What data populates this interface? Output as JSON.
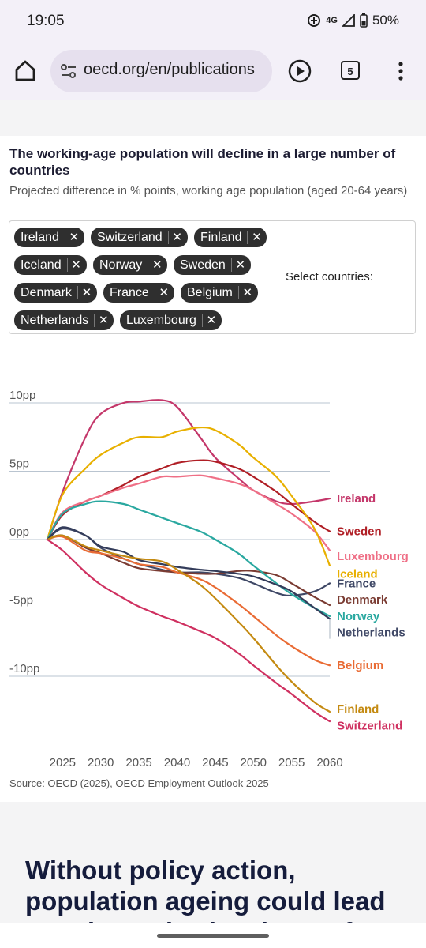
{
  "status": {
    "time": "19:05",
    "network": "4G",
    "battery": "50%"
  },
  "browser": {
    "url": "oecd.org/en/publications",
    "tab_count": "5"
  },
  "chart_data": {
    "type": "line",
    "title": "The working-age population will decline in a large number of countries",
    "subtitle": "Projected difference in % points, working age population (aged 20-64 years)",
    "x": [
      2023,
      2025,
      2028,
      2030,
      2033,
      2035,
      2038,
      2040,
      2043,
      2045,
      2048,
      2050,
      2053,
      2055,
      2058,
      2060
    ],
    "xticks": [
      "2025",
      "2030",
      "2035",
      "2040",
      "2045",
      "2050",
      "2055",
      "2060"
    ],
    "yticks": [
      {
        "value": 10,
        "label": "10pp"
      },
      {
        "value": 5,
        "label": "5pp"
      },
      {
        "value": 0,
        "label": "0pp"
      },
      {
        "value": -5,
        "label": "-5pp"
      },
      {
        "value": -10,
        "label": "-10pp"
      }
    ],
    "ylim": [
      -12,
      11
    ],
    "grid": true,
    "series": [
      {
        "name": "Ireland",
        "color": "#c4376a",
        "values": [
          0,
          3.5,
          7.5,
          9.2,
          10,
          10.1,
          10.2,
          9.7,
          7.5,
          6,
          4.5,
          3.6,
          2.8,
          2.6,
          2.8,
          3.0
        ]
      },
      {
        "name": "Sweden",
        "color": "#b01e25",
        "values": [
          0,
          1.8,
          2.8,
          3.2,
          4.0,
          4.6,
          5.2,
          5.6,
          5.8,
          5.7,
          5.2,
          4.6,
          3.5,
          2.6,
          1.3,
          0.6
        ]
      },
      {
        "name": "Luxembourg",
        "color": "#ef6f86",
        "values": [
          0,
          2.0,
          2.8,
          3.2,
          3.8,
          4.1,
          4.6,
          4.6,
          4.7,
          4.5,
          4.1,
          3.6,
          2.6,
          1.9,
          0.6,
          -0.8
        ]
      },
      {
        "name": "Iceland",
        "color": "#e8b000",
        "values": [
          0,
          3.3,
          5.2,
          6.2,
          7.1,
          7.5,
          7.5,
          7.9,
          8.2,
          8.0,
          7.0,
          6.0,
          4.6,
          3.2,
          0.8,
          -1.9
        ]
      },
      {
        "name": "France",
        "color": "#3f4866",
        "values": [
          0,
          0.8,
          0.3,
          -0.6,
          -1.4,
          -1.8,
          -2.2,
          -2.4,
          -2.4,
          -2.5,
          -2.8,
          -3.2,
          -3.9,
          -4.1,
          -3.8,
          -3.2
        ]
      },
      {
        "name": "Denmark",
        "color": "#7a3b32",
        "values": [
          0,
          0.3,
          -0.6,
          -1.0,
          -1.7,
          -2.1,
          -2.3,
          -2.4,
          -2.5,
          -2.5,
          -2.3,
          -2.3,
          -2.6,
          -3.2,
          -4.2,
          -4.8
        ]
      },
      {
        "name": "Norway",
        "color": "#2aa8a0",
        "values": [
          0,
          1.9,
          2.6,
          2.8,
          2.6,
          2.2,
          1.6,
          1.2,
          0.6,
          0.0,
          -1.0,
          -1.9,
          -3.2,
          -4.0,
          -5.0,
          -5.6
        ]
      },
      {
        "name": "Netherlands",
        "color": "#333c5a",
        "values": [
          0,
          0.9,
          0.3,
          -0.5,
          -0.9,
          -1.5,
          -1.8,
          -2.0,
          -2.2,
          -2.3,
          -2.5,
          -2.7,
          -3.3,
          -3.8,
          -5.0,
          -5.8
        ]
      },
      {
        "name": "Belgium",
        "color": "#e96b34",
        "values": [
          0,
          0.2,
          -0.8,
          -1.0,
          -1.4,
          -1.8,
          -2.0,
          -2.4,
          -2.9,
          -3.5,
          -4.7,
          -5.6,
          -7.0,
          -7.8,
          -8.8,
          -9.2
        ]
      },
      {
        "name": "Finland",
        "color": "#c48a11",
        "values": [
          0,
          0.3,
          -0.5,
          -0.8,
          -1.2,
          -1.4,
          -1.6,
          -2.2,
          -3.3,
          -4.3,
          -6.0,
          -7.2,
          -9.2,
          -10.4,
          -11.9,
          -12.6
        ]
      },
      {
        "name": "Switzerland",
        "color": "#cf3060",
        "values": [
          0,
          -0.8,
          -2.4,
          -3.3,
          -4.3,
          -4.9,
          -5.6,
          -6.0,
          -6.7,
          -7.2,
          -8.3,
          -9.2,
          -10.5,
          -11.3,
          -12.6,
          -13.3
        ]
      }
    ],
    "end_labels": [
      {
        "name": "Ireland",
        "label_y": 3.0,
        "color": "#c4376a"
      },
      {
        "name": "Sweden",
        "label_y": 0.6,
        "color": "#b01e25"
      },
      {
        "name": "Luxembourg",
        "label_y": -1.2,
        "color": "#ef6f86"
      },
      {
        "name": "Iceland",
        "label_y": -2.5,
        "color": "#e8b000"
      },
      {
        "name": "France",
        "label_y": -3.2,
        "color": "#3f4866"
      },
      {
        "name": "Denmark",
        "label_y": -4.4,
        "color": "#7a3b32"
      },
      {
        "name": "Norway",
        "label_y": -5.6,
        "color": "#2aa8a0"
      },
      {
        "name": "Netherlands",
        "label_y": -6.8,
        "color": "#3f4866"
      },
      {
        "name": "Belgium",
        "label_y": -9.2,
        "color": "#e96b34"
      },
      {
        "name": "Finland",
        "label_y": -12.4,
        "color": "#c48a11"
      },
      {
        "name": "Switzerland",
        "label_y": -13.6,
        "color": "#cf3060"
      }
    ],
    "source_prefix": "Source: OECD (2025), ",
    "source_link": "OECD Employment Outlook 2025"
  },
  "selector": {
    "label": "Select countries:",
    "chips": [
      "Ireland",
      "Switzerland",
      "Finland",
      "Iceland",
      "Norway",
      "Sweden",
      "Denmark",
      "France",
      "Belgium",
      "Netherlands",
      "Luxembourg"
    ],
    "remove_symbol": "✕"
  },
  "article": {
    "headline": "Without policy action, population ageing could lead to a dramatic slowdown of"
  }
}
